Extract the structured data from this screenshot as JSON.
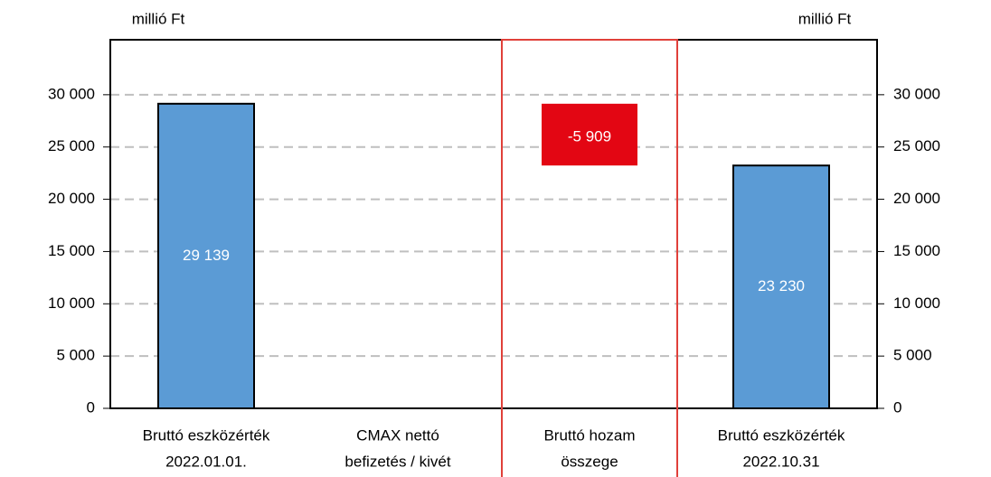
{
  "chart_data": {
    "type": "waterfall",
    "y_label": "millió Ft",
    "y2_label": "millió Ft",
    "categories": [
      [
        "Bruttó eszközérték",
        "2022.01.01."
      ],
      [
        "CMAX nettó",
        "befizetés / kivét"
      ],
      [
        "Bruttó hozam",
        "összege"
      ],
      [
        "Bruttó eszközérték",
        "2022.10.31"
      ]
    ],
    "values": [
      29139,
      null,
      -5909,
      23230
    ],
    "value_labels": [
      "29 139",
      null,
      "-5 909",
      "23 230"
    ],
    "totals": [
      true,
      false,
      false,
      true
    ],
    "colors": [
      "#5b9bd5",
      null,
      "#e30613",
      "#5b9bd5"
    ],
    "highlight": 2,
    "ylim": [
      0,
      35000
    ],
    "yticks": [
      0,
      {
        "value": 5000,
        "label": "5 000"
      },
      {
        "value": 10000,
        "label": "10 000"
      },
      {
        "value": 15000,
        "label": "15 000"
      },
      {
        "value": 20000,
        "label": "20 000"
      },
      {
        "value": 25000,
        "label": "25 000"
      },
      {
        "value": 30000,
        "label": "30 000"
      }
    ],
    "y2lim": [
      0,
      35000
    ],
    "y2ticks": [
      0,
      {
        "value": 5000,
        "label": "5 000"
      },
      {
        "value": 10000,
        "label": "10 000"
      },
      {
        "value": 15000,
        "label": "15 000"
      },
      {
        "value": 20000,
        "label": "20 000"
      },
      {
        "value": 25000,
        "label": "25 000"
      },
      {
        "value": 30000,
        "label": "30 000"
      }
    ],
    "grid": true
  }
}
